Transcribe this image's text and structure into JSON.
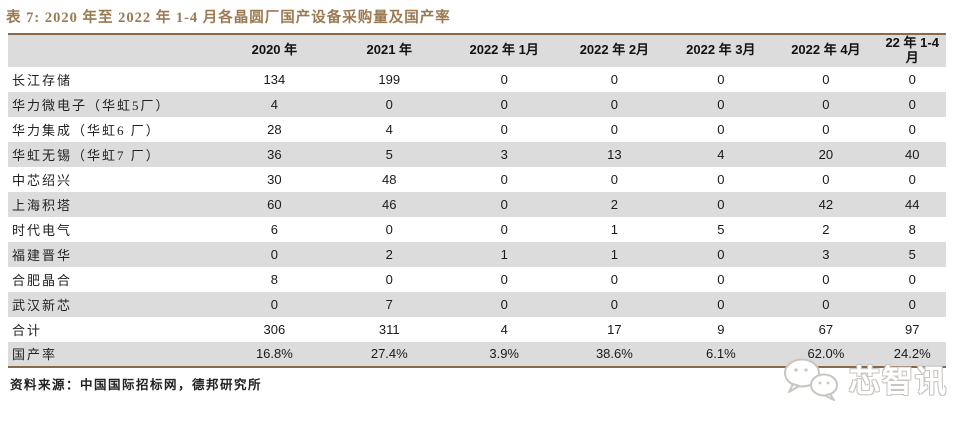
{
  "chart_data": {
    "type": "table",
    "title": "表 7: 2020 年至 2022 年 1-4 月各晶圆厂国产设备采购量及国产率",
    "columns": [
      "",
      "2020 年",
      "2021 年",
      "2022 年 1月",
      "2022 年 2月",
      "2022 年 3月",
      "2022 年 4月",
      "22 年 1-4 月"
    ],
    "rows": [
      {
        "label": "长江存储",
        "values": [
          "134",
          "199",
          "0",
          "0",
          "0",
          "0",
          "0"
        ]
      },
      {
        "label": "华力微电子（华虹5厂）",
        "values": [
          "4",
          "0",
          "0",
          "0",
          "0",
          "0",
          "0"
        ]
      },
      {
        "label": "华力集成（华虹6 厂）",
        "values": [
          "28",
          "4",
          "0",
          "0",
          "0",
          "0",
          "0"
        ]
      },
      {
        "label": "华虹无锡（华虹7 厂）",
        "values": [
          "36",
          "5",
          "3",
          "13",
          "4",
          "20",
          "40"
        ]
      },
      {
        "label": "中芯绍兴",
        "values": [
          "30",
          "48",
          "0",
          "0",
          "0",
          "0",
          "0"
        ]
      },
      {
        "label": "上海积塔",
        "values": [
          "60",
          "46",
          "0",
          "2",
          "0",
          "42",
          "44"
        ]
      },
      {
        "label": "时代电气",
        "values": [
          "6",
          "0",
          "0",
          "1",
          "5",
          "2",
          "8"
        ]
      },
      {
        "label": "福建晋华",
        "values": [
          "0",
          "2",
          "1",
          "1",
          "0",
          "3",
          "5"
        ]
      },
      {
        "label": "合肥晶合",
        "values": [
          "8",
          "0",
          "0",
          "0",
          "0",
          "0",
          "0"
        ]
      },
      {
        "label": "武汉新芯",
        "values": [
          "0",
          "7",
          "0",
          "0",
          "0",
          "0",
          "0"
        ]
      },
      {
        "label": "合计",
        "values": [
          "306",
          "311",
          "4",
          "17",
          "9",
          "67",
          "97"
        ]
      },
      {
        "label": "国产率",
        "values": [
          "16.8%",
          "27.4%",
          "3.9%",
          "38.6%",
          "6.1%",
          "62.0%",
          "24.2%"
        ]
      }
    ],
    "source": "资料来源：中国国际招标网，德邦研究所",
    "layout": {
      "grid": "alternating-row-shading",
      "header_position": "top"
    }
  },
  "watermark": {
    "text": "芯智讯",
    "icon": "wechat-icon"
  },
  "colors": {
    "accent_brown_border": "#8a684a",
    "title_brown": "#9b7a52",
    "row_alt_gray": "#dcdcdc",
    "text_dark": "#1a1a1a",
    "watermark_outline": "#c9c5c1"
  }
}
